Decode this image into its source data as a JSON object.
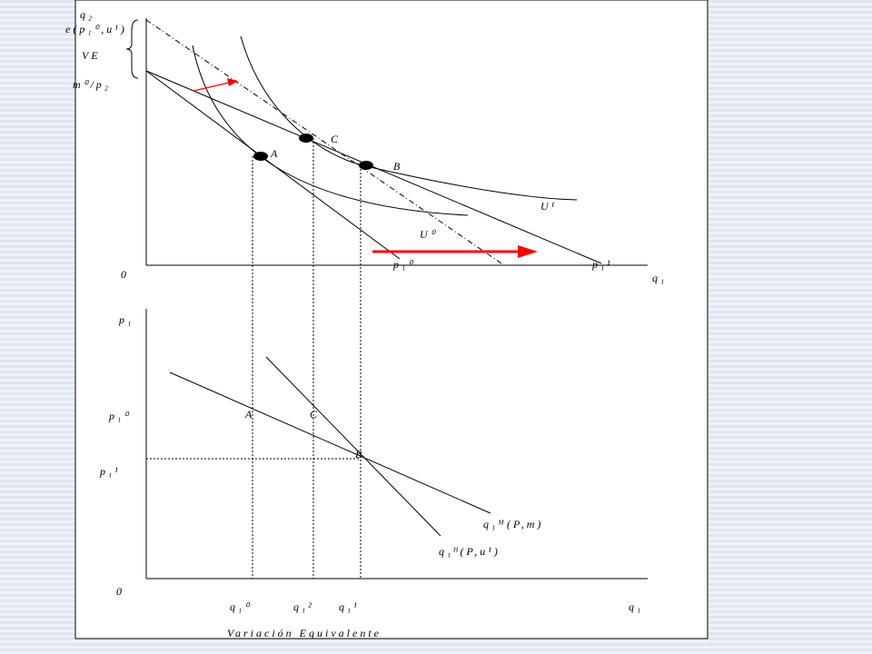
{
  "top_panel": {
    "y_axis_label": "q₂",
    "expenditure_label": "e(p₁⁰,u¹)",
    "ve_label": "VE",
    "income_label": "m⁰/p₂",
    "point_c": "C",
    "point_a": "A",
    "point_b": "B",
    "curve_u1": "U¹",
    "curve_u0": "U⁰",
    "budget_p10": "p₁⁰",
    "budget_p11": "p₁¹",
    "origin": "0",
    "x_axis_label": "q₁"
  },
  "bottom_panel": {
    "y_axis_label": "p₁",
    "price_p10": "p₁⁰",
    "price_p11": "p₁¹",
    "point_a": "A",
    "point_c": "C",
    "point_b": "B",
    "marshallian_label": "q₁ᴹ(P,m)",
    "hicksian_label": "q₁ᴴ(P,u¹)",
    "origin": "0",
    "q10": "q₁⁰",
    "q12": "q₁²",
    "q11": "q₁¹",
    "x_axis_label": "q₁"
  },
  "caption": "Variación Equivalente"
}
